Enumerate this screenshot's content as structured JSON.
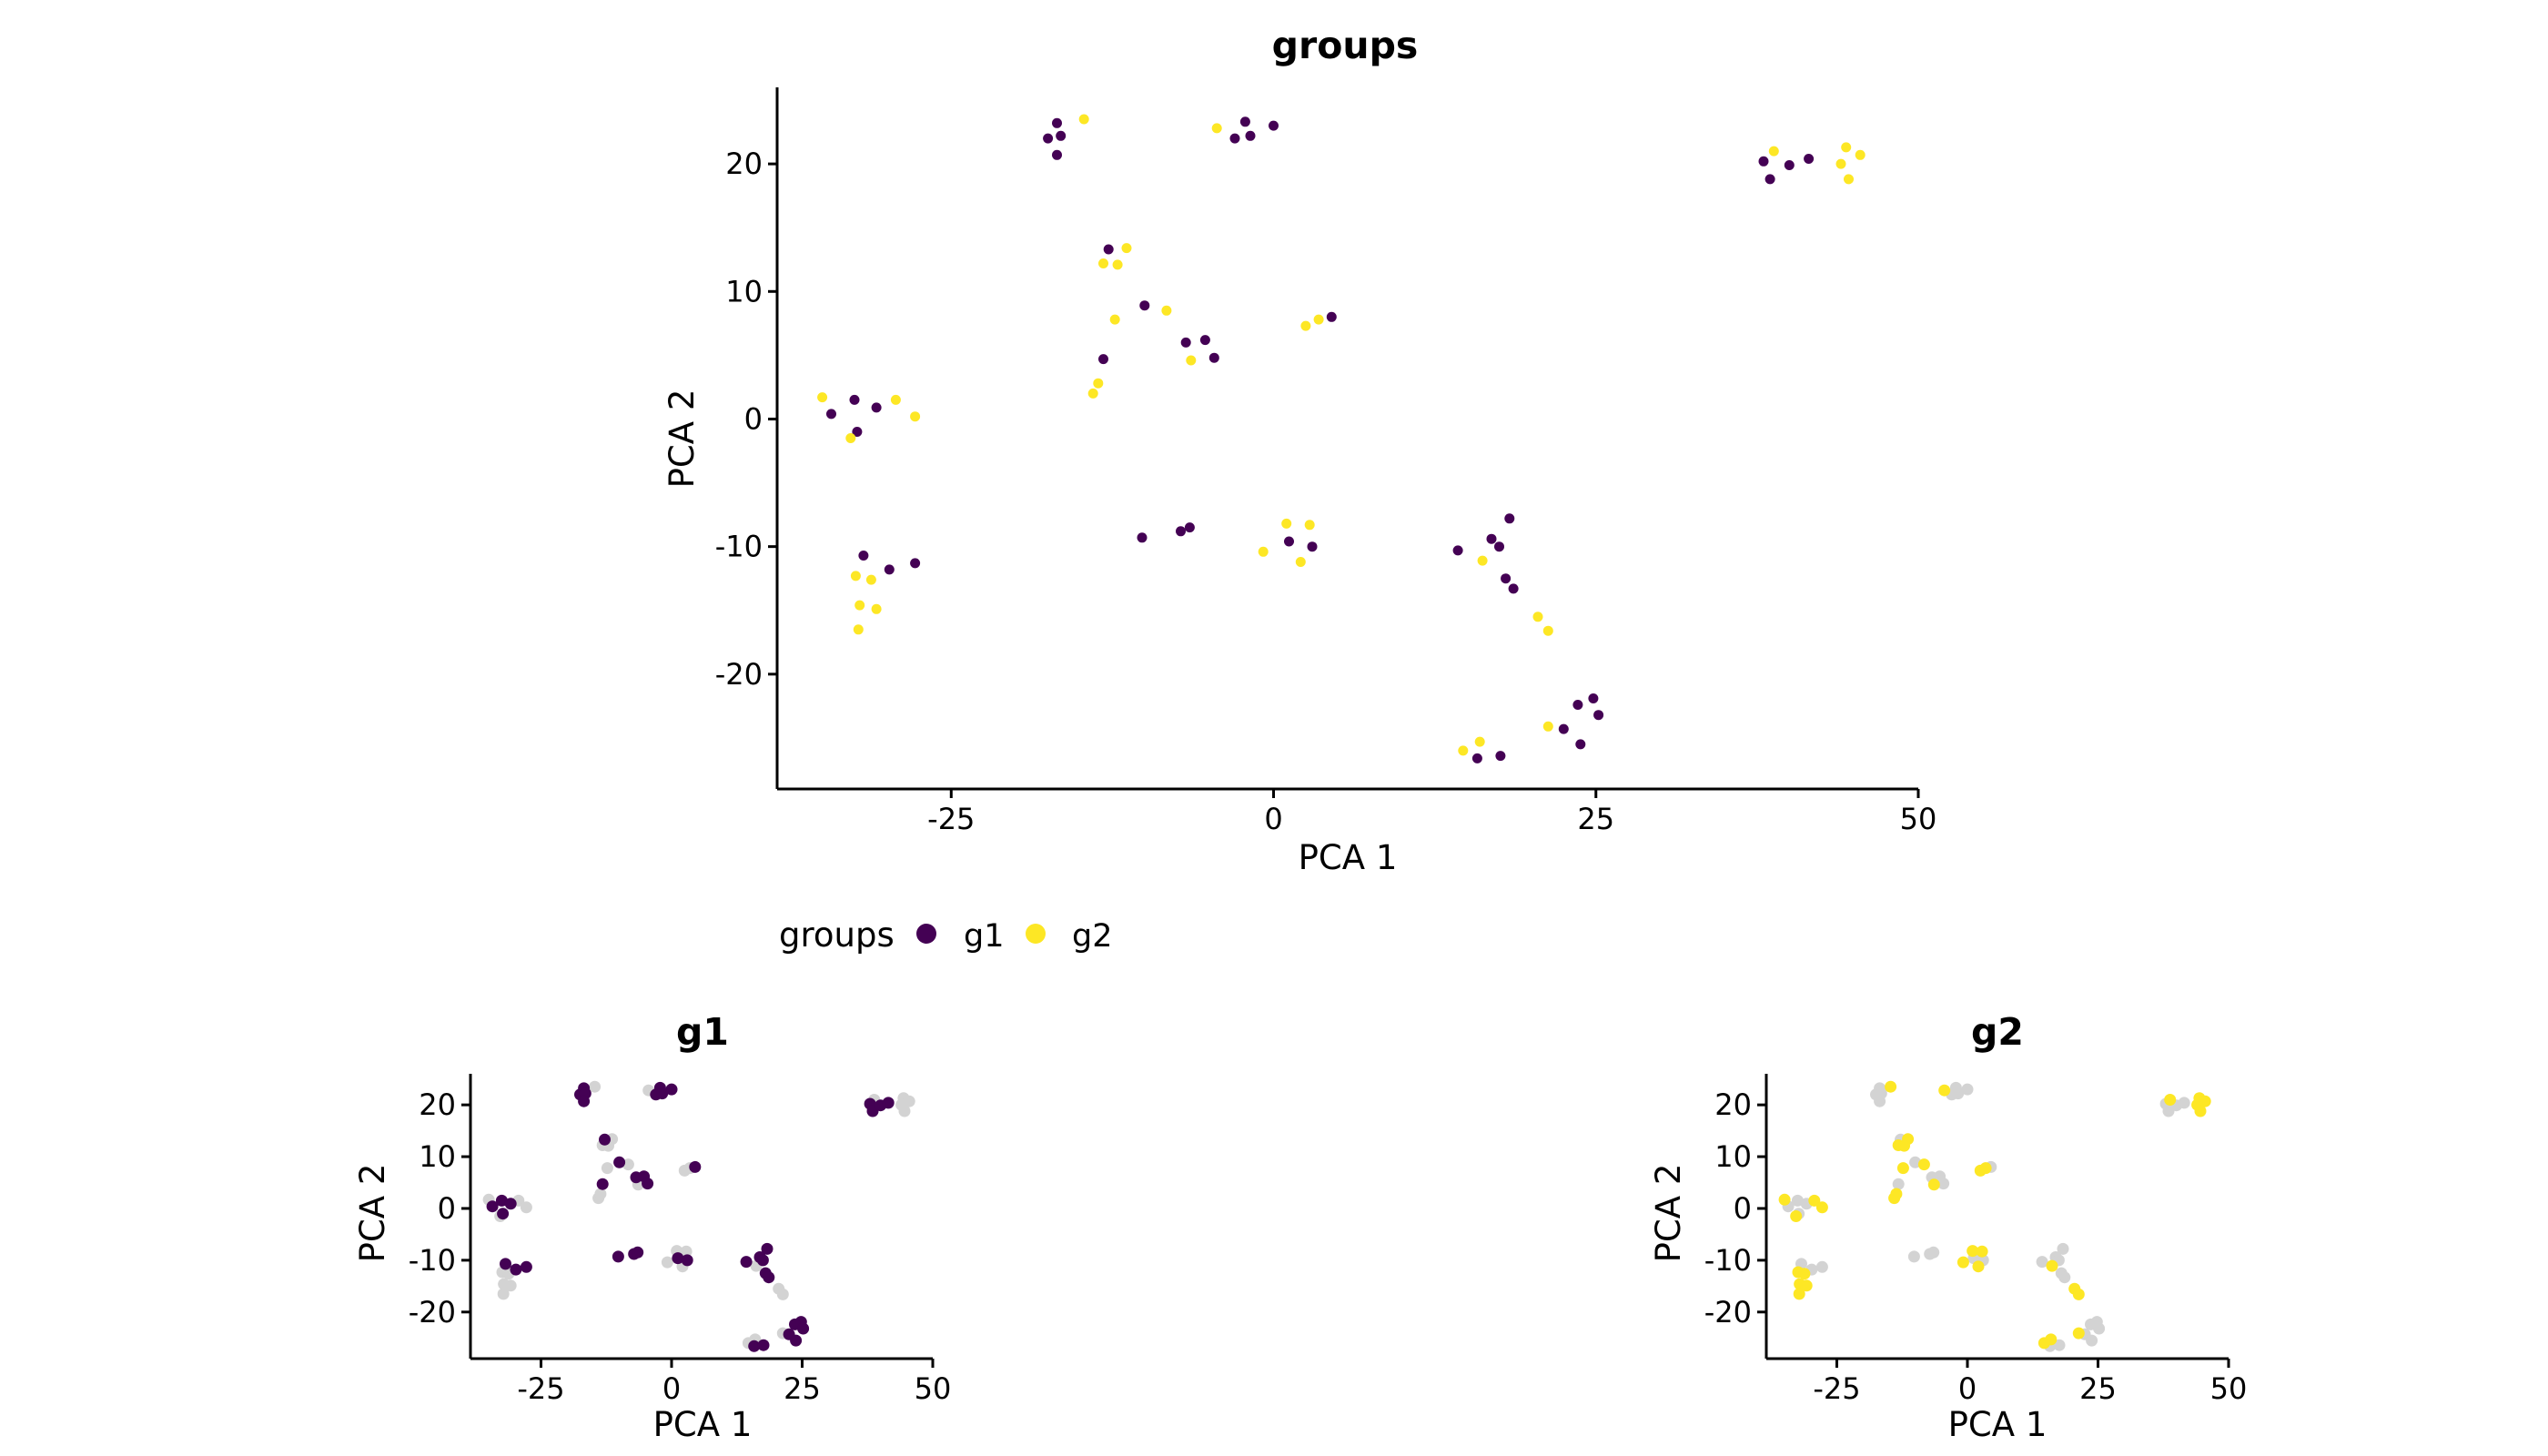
{
  "colors": {
    "g1": "#440154",
    "g2": "#fde725",
    "other": "#d3d3d3",
    "axis": "#000000"
  },
  "legend": {
    "title": "groups",
    "items": [
      {
        "label": "g1",
        "color": "#440154"
      },
      {
        "label": "g2",
        "color": "#fde725"
      }
    ],
    "placement": "bottom"
  },
  "chart_data": [
    {
      "id": "main",
      "type": "scatter",
      "title": "groups",
      "xlabel": "PCA 1",
      "ylabel": "PCA 2",
      "xlim": [
        -38.5,
        50
      ],
      "ylim": [
        -29,
        26
      ],
      "xticks": [
        -25,
        0,
        25,
        50
      ],
      "yticks": [
        -20,
        -10,
        0,
        10,
        20
      ],
      "xtick_labels": [
        "-25",
        "0",
        "25",
        "50"
      ],
      "ytick_labels": [
        "-20",
        "-10",
        "0",
        "10",
        "20"
      ],
      "highlight": "all",
      "series": [
        {
          "name": "g1",
          "points": [
            [
              -17.5,
              22
            ],
            [
              -16.8,
              23.2
            ],
            [
              -16.5,
              22.2
            ],
            [
              -16.8,
              20.7
            ],
            [
              -3.0,
              22.0
            ],
            [
              -2.2,
              23.3
            ],
            [
              -1.8,
              22.2
            ],
            [
              0,
              23
            ],
            [
              38,
              20.2
            ],
            [
              38.5,
              18.8
            ],
            [
              40,
              19.9
            ],
            [
              41.5,
              20.4
            ],
            [
              -12.8,
              13.3
            ],
            [
              -10,
              8.9
            ],
            [
              -13.2,
              4.7
            ],
            [
              -6.8,
              6
            ],
            [
              -5.3,
              6.2
            ],
            [
              -4.6,
              4.8
            ],
            [
              4.5,
              8
            ],
            [
              -32.5,
              1.5
            ],
            [
              -34.3,
              0.4
            ],
            [
              -30.8,
              0.9
            ],
            [
              -32.3,
              -1.0
            ],
            [
              -31.8,
              -10.7
            ],
            [
              -29.8,
              -11.8
            ],
            [
              -27.8,
              -11.3
            ],
            [
              -10.2,
              -9.3
            ],
            [
              -7.2,
              -8.8
            ],
            [
              -6.5,
              -8.5
            ],
            [
              1.2,
              -9.6
            ],
            [
              3.0,
              -10.0
            ],
            [
              14.3,
              -10.3
            ],
            [
              16.9,
              -9.4
            ],
            [
              17.5,
              -10.0
            ],
            [
              18.0,
              -12.5
            ],
            [
              18.3,
              -7.8
            ],
            [
              18.6,
              -13.3
            ],
            [
              24.8,
              -21.9
            ],
            [
              23.6,
              -22.4
            ],
            [
              25.2,
              -23.2
            ],
            [
              22.5,
              -24.3
            ],
            [
              23.8,
              -25.5
            ],
            [
              15.8,
              -26.6
            ],
            [
              17.6,
              -26.4
            ]
          ]
        },
        {
          "name": "g2",
          "points": [
            [
              -14.7,
              23.5
            ],
            [
              -4.4,
              22.8
            ],
            [
              38.8,
              21
            ],
            [
              44.4,
              21.3
            ],
            [
              45.5,
              20.7
            ],
            [
              44.0,
              20.0
            ],
            [
              44.6,
              18.8
            ],
            [
              -11.4,
              13.4
            ],
            [
              -13.2,
              12.2
            ],
            [
              -12.1,
              12.1
            ],
            [
              -12.3,
              7.8
            ],
            [
              -8.3,
              8.5
            ],
            [
              2.5,
              7.3
            ],
            [
              3.5,
              7.8
            ],
            [
              -6.4,
              4.6
            ],
            [
              -14,
              2
            ],
            [
              -13.6,
              2.8
            ],
            [
              -35,
              1.7
            ],
            [
              -29.3,
              1.5
            ],
            [
              -27.8,
              0.2
            ],
            [
              -32.8,
              -1.5
            ],
            [
              -32.4,
              -12.3
            ],
            [
              -31.2,
              -12.6
            ],
            [
              -32.1,
              -14.6
            ],
            [
              -30.8,
              -14.9
            ],
            [
              -32.2,
              -16.5
            ],
            [
              -0.8,
              -10.4
            ],
            [
              1.0,
              -8.2
            ],
            [
              2.8,
              -8.3
            ],
            [
              2.1,
              -11.2
            ],
            [
              16.2,
              -11.1
            ],
            [
              20.5,
              -15.5
            ],
            [
              21.3,
              -16.6
            ],
            [
              21.3,
              -24.1
            ],
            [
              14.7,
              -26
            ],
            [
              16,
              -25.3
            ]
          ]
        }
      ]
    },
    {
      "id": "g1",
      "type": "scatter",
      "title": "g1",
      "xlabel": "PCA 1",
      "ylabel": "PCA 2",
      "xlim": [
        -38.5,
        50
      ],
      "ylim": [
        -29,
        26
      ],
      "xticks": [
        -25,
        0,
        25,
        50
      ],
      "yticks": [
        -20,
        -10,
        0,
        10,
        20
      ],
      "xtick_labels": [
        "-25",
        "0",
        "25",
        "50"
      ],
      "ytick_labels": [
        "-20",
        "-10",
        "0",
        "10",
        "20"
      ],
      "highlight": "g1"
    },
    {
      "id": "g2",
      "type": "scatter",
      "title": "g2",
      "xlabel": "PCA 1",
      "ylabel": "PCA 2",
      "xlim": [
        -38.5,
        50
      ],
      "ylim": [
        -29,
        26
      ],
      "xticks": [
        -25,
        0,
        25,
        50
      ],
      "yticks": [
        -20,
        -10,
        0,
        10,
        20
      ],
      "xtick_labels": [
        "-25",
        "0",
        "25",
        "50"
      ],
      "ytick_labels": [
        "-20",
        "-10",
        "0",
        "10",
        "20"
      ],
      "highlight": "g2"
    }
  ]
}
